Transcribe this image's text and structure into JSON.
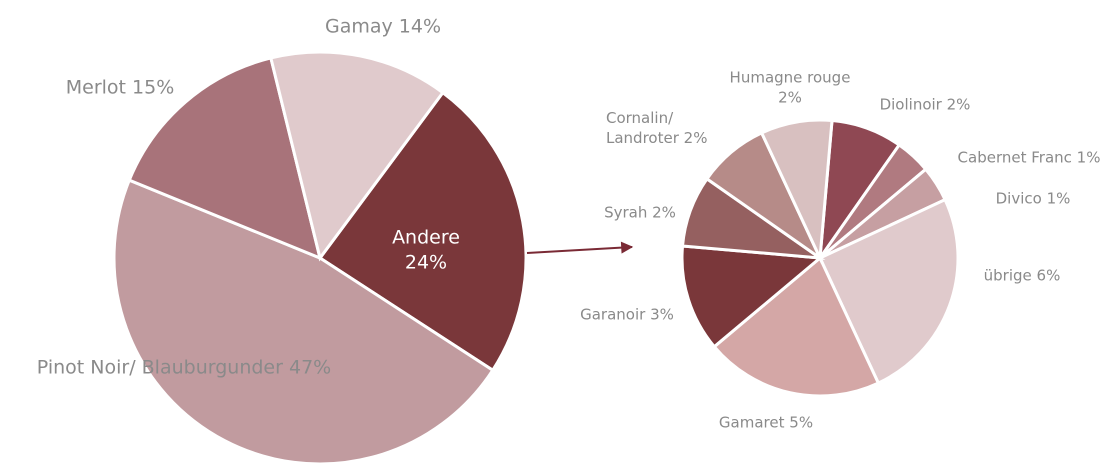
{
  "chart_data": [
    {
      "type": "pie",
      "categories": [
        "Andere",
        "Pinot Noir/ Blauburgunder",
        "Merlot",
        "Gamay"
      ],
      "values": [
        24,
        47,
        15,
        14
      ],
      "value_labels": [
        "24%",
        "47%",
        "15%",
        "14%"
      ],
      "colors": [
        "#7a373a",
        "#c19b9f",
        "#a8737a",
        "#e0cacc"
      ]
    },
    {
      "type": "pie",
      "categories": [
        "Diolinoir",
        "Cabernet Franc",
        "Divico",
        "übrige",
        "Gamaret",
        "Garanoir",
        "Syrah",
        "Cornalin/ Landroter",
        "Humagne rouge"
      ],
      "values": [
        2,
        1,
        1,
        6,
        5,
        3,
        2,
        2,
        2
      ],
      "value_labels": [
        "2%",
        "1%",
        "1%",
        "6%",
        "5%",
        "3%",
        "2%",
        "2%",
        "2%"
      ],
      "colors": [
        "#8f4853",
        "#b07a80",
        "#c69fa2",
        "#e0cacc",
        "#d4a7a6",
        "#7a373a",
        "#956060",
        "#b68b88",
        "#d8c0c0"
      ]
    }
  ]
}
